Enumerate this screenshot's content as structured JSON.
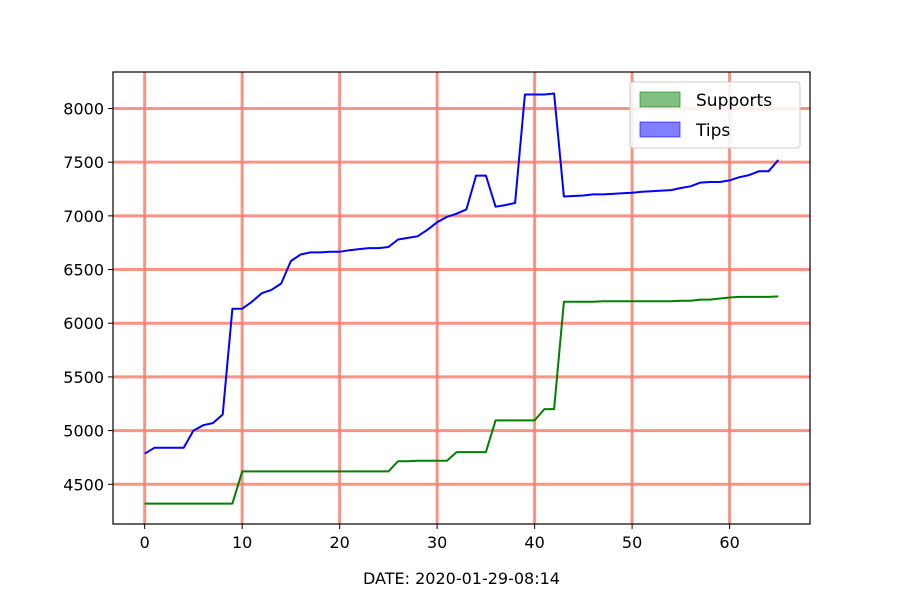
{
  "chart_data": {
    "type": "line",
    "title": "",
    "xlabel": "DATE: 2020-01-29-08:14",
    "ylabel": "",
    "xlim": [
      -3.25,
      68.25
    ],
    "ylim": [
      4130,
      8340
    ],
    "xticks": [
      0,
      10,
      20,
      30,
      40,
      50,
      60
    ],
    "yticks": [
      4500,
      5000,
      5500,
      6000,
      6500,
      7000,
      7500,
      8000
    ],
    "grid": true,
    "grid_color": "#fa8072",
    "legend_position": "top-right",
    "series": [
      {
        "name": "Supports",
        "color": "#008000",
        "legend_fill": "#80c080",
        "x": [
          0,
          1,
          2,
          3,
          4,
          5,
          6,
          7,
          8,
          9,
          10,
          11,
          12,
          13,
          14,
          15,
          16,
          17,
          18,
          19,
          20,
          21,
          22,
          23,
          24,
          25,
          26,
          27,
          28,
          29,
          30,
          31,
          32,
          33,
          34,
          35,
          36,
          37,
          38,
          39,
          40,
          41,
          42,
          43,
          44,
          45,
          46,
          47,
          48,
          49,
          50,
          51,
          52,
          53,
          54,
          55,
          56,
          57,
          58,
          59,
          60,
          61,
          62,
          63,
          64,
          65
        ],
        "y": [
          4320,
          4320,
          4320,
          4320,
          4320,
          4320,
          4320,
          4320,
          4320,
          4320,
          4620,
          4620,
          4620,
          4620,
          4620,
          4620,
          4620,
          4620,
          4620,
          4620,
          4620,
          4620,
          4620,
          4620,
          4620,
          4620,
          4715,
          4715,
          4720,
          4720,
          4720,
          4720,
          4800,
          4800,
          4800,
          4800,
          5095,
          5095,
          5095,
          5095,
          5095,
          5200,
          5200,
          6200,
          6200,
          6200,
          6200,
          6205,
          6205,
          6205,
          6205,
          6205,
          6205,
          6205,
          6205,
          6210,
          6210,
          6220,
          6220,
          6230,
          6240,
          6245,
          6245,
          6245,
          6245,
          6250
        ]
      },
      {
        "name": "Tips",
        "color": "#0000ff",
        "legend_fill": "#8080ff",
        "x": [
          0,
          1,
          2,
          3,
          4,
          5,
          6,
          7,
          8,
          9,
          10,
          11,
          12,
          13,
          14,
          15,
          16,
          17,
          18,
          19,
          20,
          21,
          22,
          23,
          24,
          25,
          26,
          27,
          28,
          29,
          30,
          31,
          32,
          33,
          34,
          35,
          36,
          37,
          38,
          39,
          40,
          41,
          42,
          43,
          44,
          45,
          46,
          47,
          48,
          49,
          50,
          51,
          52,
          53,
          54,
          55,
          56,
          57,
          58,
          59,
          60,
          61,
          62,
          63,
          64,
          65
        ],
        "y": [
          4785,
          4840,
          4840,
          4840,
          4840,
          5000,
          5050,
          5070,
          5150,
          6135,
          6135,
          6200,
          6280,
          6310,
          6370,
          6580,
          6640,
          6660,
          6660,
          6665,
          6665,
          6680,
          6690,
          6700,
          6700,
          6710,
          6780,
          6795,
          6810,
          6870,
          6940,
          6990,
          7020,
          7060,
          7375,
          7375,
          7085,
          7100,
          7120,
          8130,
          8130,
          8130,
          8140,
          7180,
          7185,
          7190,
          7200,
          7200,
          7205,
          7210,
          7215,
          7225,
          7230,
          7235,
          7240,
          7260,
          7275,
          7310,
          7315,
          7315,
          7330,
          7360,
          7380,
          7415,
          7415,
          7520
        ]
      }
    ]
  }
}
